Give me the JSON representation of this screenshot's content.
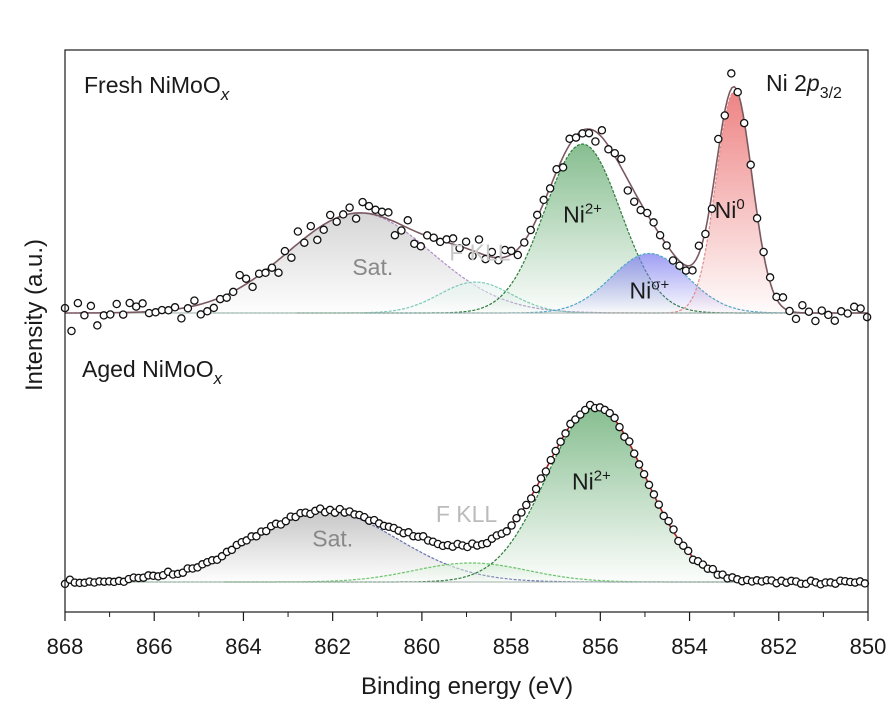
{
  "chart_data": {
    "type": "line",
    "title": "Ni 2p3/2",
    "title_parts": {
      "element": "Ni 2",
      "orbital": "p",
      "sub": "3/2"
    },
    "xlabel": "Binding energy (eV)",
    "ylabel": "Intensity (a.u.)",
    "xlim": [
      868,
      850
    ],
    "x_reversed": true,
    "xticks": [
      868,
      866,
      864,
      862,
      860,
      858,
      856,
      854,
      852,
      850
    ],
    "panels": [
      {
        "name": "Fresh NiMoOx",
        "label_main": "Fresh NiMoO",
        "label_sub": "x",
        "ylim": [
          0,
          1.12
        ],
        "components": [
          {
            "name": "Sat.",
            "label": "Sat.",
            "sup": "",
            "center": 861.4,
            "fwhm": 3.8,
            "height": 0.42,
            "color": "#b08cc8",
            "fill": "#c8c8c8",
            "label_at": [
              861.1,
              0.16
            ],
            "label_color": "#888888"
          },
          {
            "name": "F KLL",
            "label": "F KLL",
            "sup": "",
            "center": 858.8,
            "fwhm": 1.9,
            "height": 0.13,
            "color": "#7ccab8",
            "fill": "#e2f2ee",
            "label_at": [
              858.7,
              0.22
            ],
            "label_color": "#c8c8c8"
          },
          {
            "name": "Ni2+",
            "label": "Ni",
            "sup": "2+",
            "center": 856.4,
            "fwhm": 2.0,
            "height": 0.71,
            "color": "#2e7d3c",
            "fill": "#5ea86a",
            "label_at": [
              856.4,
              0.38
            ],
            "label_color": "#1a1a1a"
          },
          {
            "name": "Niσ+",
            "label": "Ni",
            "sup": "σ+",
            "center": 854.9,
            "fwhm": 2.0,
            "height": 0.25,
            "color": "#4fa8c8",
            "fill": "#7e7ef0",
            "label_at": [
              854.9,
              0.06
            ],
            "label_color": "#1a1a1a"
          },
          {
            "name": "Ni0",
            "label": "Ni",
            "sup": "0",
            "center": 853.0,
            "fwhm": 0.95,
            "height": 0.93,
            "color": "#e08c8c",
            "fill": "#e85a5a",
            "label_at": [
              853.1,
              0.4
            ],
            "label_color": "#1a1a1a"
          }
        ]
      },
      {
        "name": "Aged NiMoOx",
        "label_main": "Aged NiMoO",
        "label_sub": "x",
        "ylim": [
          0,
          1.0
        ],
        "components": [
          {
            "name": "Sat.",
            "label": "Sat.",
            "sup": "",
            "center": 862.2,
            "fwhm": 3.9,
            "height": 0.26,
            "color": "#6870b0",
            "fill": "#b4b4b4",
            "label_at": [
              862.0,
              0.13
            ],
            "label_color": "#888888"
          },
          {
            "name": "F KLL",
            "label": "F KLL",
            "sup": "",
            "center": 858.9,
            "fwhm": 3.0,
            "height": 0.07,
            "color": "#6cc46c",
            "fill": "#dff2df",
            "label_at": [
              859.0,
              0.22
            ],
            "label_color": "#bbbbbb"
          },
          {
            "name": "Ni2+",
            "label": "Ni",
            "sup": "2+",
            "center": 856.1,
            "fwhm": 2.6,
            "height": 0.64,
            "color": "#2e7d3c",
            "fill": "#5ea86a",
            "label_at": [
              856.2,
              0.34
            ],
            "label_color": "#1a1a1a"
          }
        ]
      }
    ]
  }
}
